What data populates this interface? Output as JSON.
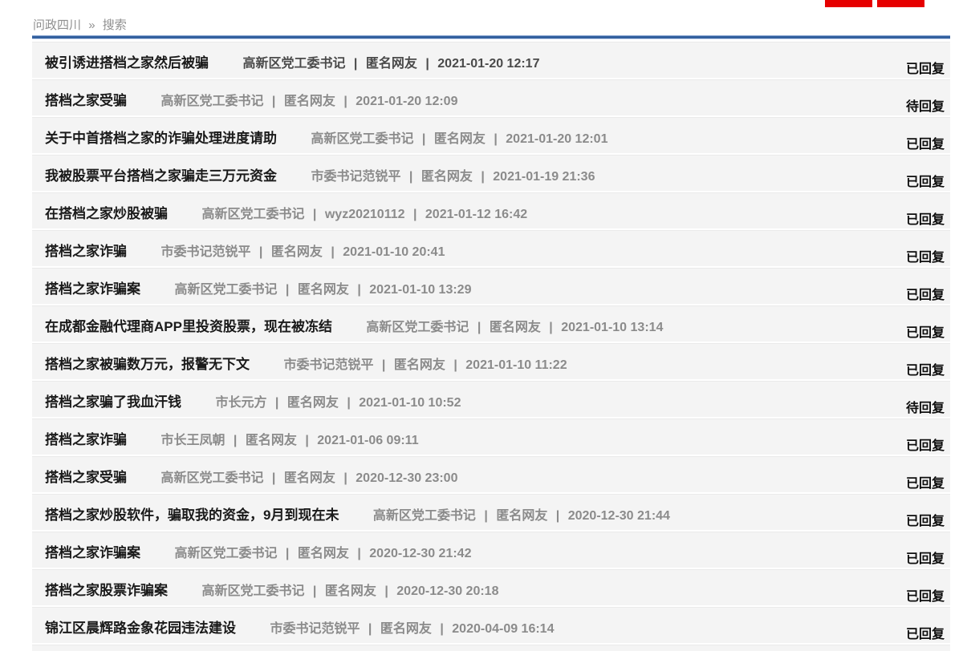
{
  "breadcrumb": {
    "root": "问政四川",
    "separator": "»",
    "current": "搜索"
  },
  "header": {
    "button_color": "#e60000",
    "buttons_note_count": 2
  },
  "colors": {
    "accent_bar_blue": "#33609f",
    "row_background": "#f4f4f4",
    "title_text": "#1a1a1a",
    "meta_text": "#8b8b8b",
    "status_text": "#0d0d0d",
    "button_red": "#e60000"
  },
  "list": {
    "meta_separator": "|",
    "items": [
      {
        "title": "被引诱进搭档之家然后被骗",
        "recipient": "高新区党工委书记",
        "author": "匿名网友",
        "datetime": "2021-01-20 12:17",
        "status": "已回复",
        "meta_emphasis": true
      },
      {
        "title": "搭档之家受骗",
        "recipient": "高新区党工委书记",
        "author": "匿名网友",
        "datetime": "2021-01-20 12:09",
        "status": "待回复"
      },
      {
        "title": "关于中首搭档之家的诈骗处理进度请助",
        "recipient": "高新区党工委书记",
        "author": "匿名网友",
        "datetime": "2021-01-20 12:01",
        "status": "已回复"
      },
      {
        "title": "我被股票平台搭档之家骗走三万元资金",
        "recipient": "市委书记范锐平",
        "author": "匿名网友",
        "datetime": "2021-01-19 21:36",
        "status": "已回复"
      },
      {
        "title": "在搭档之家炒股被骗",
        "recipient": "高新区党工委书记",
        "author": "wyz20210112",
        "datetime": "2021-01-12 16:42",
        "status": "已回复"
      },
      {
        "title": "搭档之家诈骗",
        "recipient": "市委书记范锐平",
        "author": "匿名网友",
        "datetime": "2021-01-10 20:41",
        "status": "已回复"
      },
      {
        "title": "搭档之家诈骗案",
        "recipient": "高新区党工委书记",
        "author": "匿名网友",
        "datetime": "2021-01-10 13:29",
        "status": "已回复"
      },
      {
        "title": "在成都金融代理商APP里投资股票，现在被冻结",
        "recipient": "高新区党工委书记",
        "author": "匿名网友",
        "datetime": "2021-01-10 13:14",
        "status": "已回复"
      },
      {
        "title": "搭档之家被骗数万元，报警无下文",
        "recipient": "市委书记范锐平",
        "author": "匿名网友",
        "datetime": "2021-01-10 11:22",
        "status": "已回复"
      },
      {
        "title": "搭档之家骗了我血汗钱",
        "recipient": "市长元方",
        "author": "匿名网友",
        "datetime": "2021-01-10 10:52",
        "status": "待回复"
      },
      {
        "title": "搭档之家诈骗",
        "recipient": "市长王凤朝",
        "author": "匿名网友",
        "datetime": "2021-01-06 09:11",
        "status": "已回复"
      },
      {
        "title": "搭档之家受骗",
        "recipient": "高新区党工委书记",
        "author": "匿名网友",
        "datetime": "2020-12-30 23:00",
        "status": "已回复"
      },
      {
        "title": "搭档之家炒股软件，骗取我的资金，9月到现在未",
        "recipient": "高新区党工委书记",
        "author": "匿名网友",
        "datetime": "2020-12-30 21:44",
        "status": "已回复"
      },
      {
        "title": "搭档之家诈骗案",
        "recipient": "高新区党工委书记",
        "author": "匿名网友",
        "datetime": "2020-12-30 21:42",
        "status": "已回复"
      },
      {
        "title": "搭档之家股票诈骗案",
        "recipient": "高新区党工委书记",
        "author": "匿名网友",
        "datetime": "2020-12-30 20:18",
        "status": "已回复"
      },
      {
        "title": "锦江区晨辉路金象花园违法建设",
        "recipient": "市委书记范锐平",
        "author": "匿名网友",
        "datetime": "2020-04-09 16:14",
        "status": "已回复"
      }
    ]
  }
}
